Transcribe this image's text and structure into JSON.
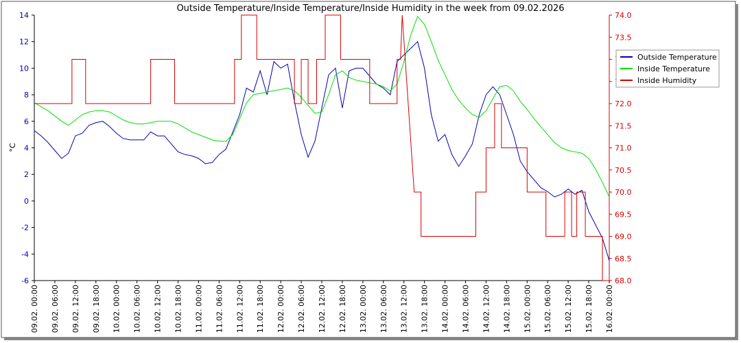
{
  "chart_data": {
    "type": "line",
    "title": "Outside Temperature/Inside Temperature/Inside Humidity in the week from 09.02.2026",
    "ylabel": "°C",
    "xlim": [
      0,
      168
    ],
    "xticks": [
      {
        "value": 0,
        "label": "09.02. 00:00"
      },
      {
        "value": 6,
        "label": "09.02. 06:00"
      },
      {
        "value": 12,
        "label": "09.02. 12:00"
      },
      {
        "value": 18,
        "label": "09.02. 18:00"
      },
      {
        "value": 24,
        "label": "10.02. 00:00"
      },
      {
        "value": 30,
        "label": "10.02. 06:00"
      },
      {
        "value": 36,
        "label": "10.02. 12:00"
      },
      {
        "value": 42,
        "label": "10.02. 18:00"
      },
      {
        "value": 48,
        "label": "11.02. 00:00"
      },
      {
        "value": 54,
        "label": "11.02. 06:00"
      },
      {
        "value": 60,
        "label": "11.02. 12:00"
      },
      {
        "value": 66,
        "label": "11.02. 18:00"
      },
      {
        "value": 72,
        "label": "12.02. 00:00"
      },
      {
        "value": 78,
        "label": "12.02. 06:00"
      },
      {
        "value": 84,
        "label": "12.02. 12:00"
      },
      {
        "value": 90,
        "label": "12.02. 18:00"
      },
      {
        "value": 96,
        "label": "13.02. 00:00"
      },
      {
        "value": 102,
        "label": "13.02. 06:00"
      },
      {
        "value": 108,
        "label": "13.02. 12:00"
      },
      {
        "value": 114,
        "label": "13.02. 18:00"
      },
      {
        "value": 120,
        "label": "14.02. 00:00"
      },
      {
        "value": 126,
        "label": "14.02. 06:00"
      },
      {
        "value": 132,
        "label": "14.02. 12:00"
      },
      {
        "value": 138,
        "label": "14.02. 18:00"
      },
      {
        "value": 144,
        "label": "15.02. 00:00"
      },
      {
        "value": 150,
        "label": "15.02. 06:00"
      },
      {
        "value": 156,
        "label": "15.02. 12:00"
      },
      {
        "value": 162,
        "label": "15.02. 18:00"
      },
      {
        "value": 168,
        "label": "16.02. 00:00"
      }
    ],
    "ylim": [
      -6,
      14
    ],
    "yticks": [
      -6,
      -4,
      -2,
      0,
      2,
      4,
      6,
      8,
      10,
      12,
      14
    ],
    "y2lim": [
      68,
      74
    ],
    "y2ticks": [
      {
        "value": 68,
        "label": "68.0"
      },
      {
        "value": 68.5,
        "label": "68.5"
      },
      {
        "value": 69,
        "label": "69.0"
      },
      {
        "value": 69.5,
        "label": "69.5"
      },
      {
        "value": 70,
        "label": "70.0"
      },
      {
        "value": 70.5,
        "label": "70.5"
      },
      {
        "value": 71,
        "label": "71.0"
      },
      {
        "value": 71.5,
        "label": "71.5"
      },
      {
        "value": 72,
        "label": "72.0"
      },
      {
        "value": 72.5,
        "label": "72.5"
      },
      {
        "value": 73,
        "label": "73.0"
      },
      {
        "value": 73.5,
        "label": "73.5"
      },
      {
        "value": 74,
        "label": "74.0"
      }
    ],
    "legend": "top-right",
    "series": [
      {
        "name": "Outside Temperature",
        "color": "#0000b4",
        "x": [
          0,
          2,
          4,
          6,
          8,
          10,
          12,
          14,
          16,
          18,
          20,
          22,
          24,
          26,
          28,
          30,
          32,
          34,
          36,
          38,
          40,
          42,
          44,
          46,
          48,
          50,
          52,
          54,
          56,
          58,
          60,
          62,
          64,
          66,
          68,
          70,
          72,
          74,
          76,
          78,
          80,
          82,
          84,
          86,
          88,
          90,
          92,
          94,
          96,
          98,
          100,
          102,
          104,
          106,
          108,
          110,
          112,
          114,
          116,
          118,
          120,
          122,
          124,
          126,
          128,
          130,
          132,
          134,
          136,
          138,
          140,
          142,
          144,
          146,
          148,
          150,
          152,
          154,
          156,
          158,
          160,
          162,
          164,
          166,
          168
        ],
        "values": [
          5.3,
          4.9,
          4.4,
          3.8,
          3.2,
          3.6,
          4.9,
          5.1,
          5.7,
          5.9,
          6.0,
          5.6,
          5.1,
          4.7,
          4.6,
          4.6,
          4.6,
          5.2,
          4.9,
          4.9,
          4.3,
          3.7,
          3.5,
          3.4,
          3.2,
          2.8,
          2.9,
          3.5,
          3.9,
          5.2,
          6.5,
          8.5,
          8.2,
          9.8,
          8.0,
          10.5,
          10.0,
          10.3,
          7.5,
          5.0,
          3.3,
          4.5,
          7.0,
          9.5,
          10.0,
          7.0,
          9.8,
          10.0,
          10.0,
          9.4,
          8.8,
          8.5,
          8.0,
          10.5,
          11.0,
          11.5,
          12.0,
          10.0,
          6.5,
          4.5,
          5.0,
          3.5,
          2.6,
          3.4,
          4.3,
          6.5,
          8.0,
          8.6,
          8.0,
          6.5,
          5.0,
          3.0,
          2.2,
          1.6,
          1.0,
          0.7,
          0.3,
          0.5,
          0.9,
          0.5,
          0.8,
          -0.8,
          -1.8,
          -2.8,
          -4.5
        ]
      },
      {
        "name": "Inside Temperature",
        "color": "#00e000",
        "x": [
          0,
          2,
          4,
          6,
          8,
          10,
          12,
          14,
          16,
          18,
          20,
          22,
          24,
          26,
          28,
          30,
          32,
          34,
          36,
          38,
          40,
          42,
          44,
          46,
          48,
          50,
          52,
          54,
          56,
          58,
          60,
          62,
          64,
          66,
          68,
          70,
          72,
          74,
          76,
          78,
          80,
          82,
          84,
          86,
          88,
          90,
          92,
          94,
          96,
          98,
          100,
          102,
          104,
          106,
          108,
          110,
          112,
          114,
          116,
          118,
          120,
          122,
          124,
          126,
          128,
          130,
          132,
          134,
          136,
          138,
          140,
          142,
          144,
          146,
          148,
          150,
          152,
          154,
          156,
          158,
          160,
          162,
          164,
          166,
          168
        ],
        "values": [
          7.4,
          7.1,
          6.8,
          6.4,
          6.0,
          5.7,
          6.1,
          6.5,
          6.7,
          6.8,
          6.8,
          6.7,
          6.4,
          6.1,
          5.9,
          5.8,
          5.8,
          5.9,
          6.0,
          6.0,
          6.0,
          5.8,
          5.5,
          5.2,
          5.0,
          4.8,
          4.6,
          4.5,
          4.5,
          5.0,
          6.2,
          7.4,
          8.0,
          8.1,
          8.2,
          8.3,
          8.4,
          8.5,
          8.3,
          7.8,
          7.2,
          6.6,
          6.7,
          8.0,
          9.5,
          9.8,
          9.3,
          9.1,
          9.0,
          8.9,
          8.8,
          8.6,
          8.3,
          8.8,
          10.5,
          12.5,
          13.9,
          13.3,
          12.0,
          10.6,
          9.5,
          8.4,
          7.6,
          7.0,
          6.5,
          6.3,
          6.8,
          7.7,
          8.6,
          8.7,
          8.3,
          7.5,
          6.9,
          6.2,
          5.6,
          5.0,
          4.4,
          4.0,
          3.8,
          3.7,
          3.6,
          3.2,
          2.4,
          1.4,
          0.3
        ]
      },
      {
        "name": "Inside Humidity",
        "color": "#d40000",
        "axis": "y2",
        "x": [
          0,
          11,
          11,
          15,
          15,
          34,
          34,
          41,
          41,
          58.5,
          58.5,
          60.5,
          60.5,
          65,
          65,
          76,
          76,
          78,
          78,
          80,
          80,
          82.5,
          82.5,
          85,
          85,
          89.5,
          89.5,
          98,
          98,
          106,
          106,
          107,
          107.5,
          111,
          113,
          113,
          129,
          129,
          132,
          132,
          134.5,
          134.5,
          136.5,
          136.5,
          144,
          144,
          149.5,
          149.5,
          155,
          155,
          157,
          157,
          158.5,
          158.5,
          161,
          161,
          166,
          166,
          168
        ],
        "values": [
          72,
          72,
          73,
          73,
          72,
          72,
          73,
          73,
          72,
          72,
          73,
          73,
          74,
          74,
          73,
          73,
          72,
          72,
          73,
          73,
          72,
          72,
          73,
          73,
          74,
          74,
          73,
          73,
          72,
          72,
          73,
          73,
          74,
          70,
          70,
          69,
          69,
          70,
          70,
          71,
          71,
          72,
          72,
          71,
          71,
          70,
          70,
          69,
          69,
          70,
          70,
          69,
          69,
          70,
          70,
          69,
          69,
          68,
          68
        ]
      }
    ]
  }
}
